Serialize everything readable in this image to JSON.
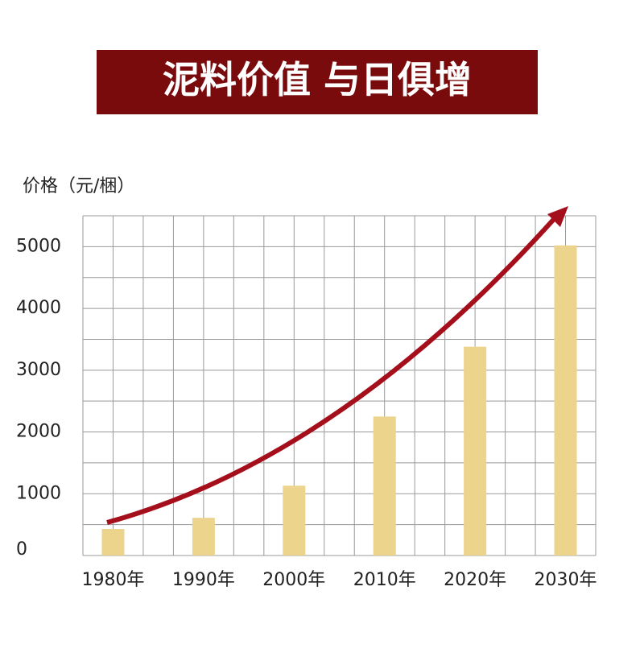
{
  "chart_data": {
    "type": "bar",
    "title": "泥料价值 与日俱增",
    "y_label": "价格（元/梱）",
    "categories": [
      "1980年",
      "1990年",
      "2000年",
      "2010年",
      "2020年",
      "2030年"
    ],
    "values": [
      430,
      610,
      1130,
      2250,
      3380,
      5020
    ],
    "color": "#ecd48d",
    "ylim": [
      0,
      5500
    ],
    "yticks": [
      0,
      1000,
      2000,
      3000,
      4000,
      5000
    ],
    "ygrid": [
      0,
      500,
      1000,
      1500,
      2000,
      2500,
      3000,
      3500,
      4000,
      4500,
      5000,
      5500
    ],
    "grid": true
  }
}
